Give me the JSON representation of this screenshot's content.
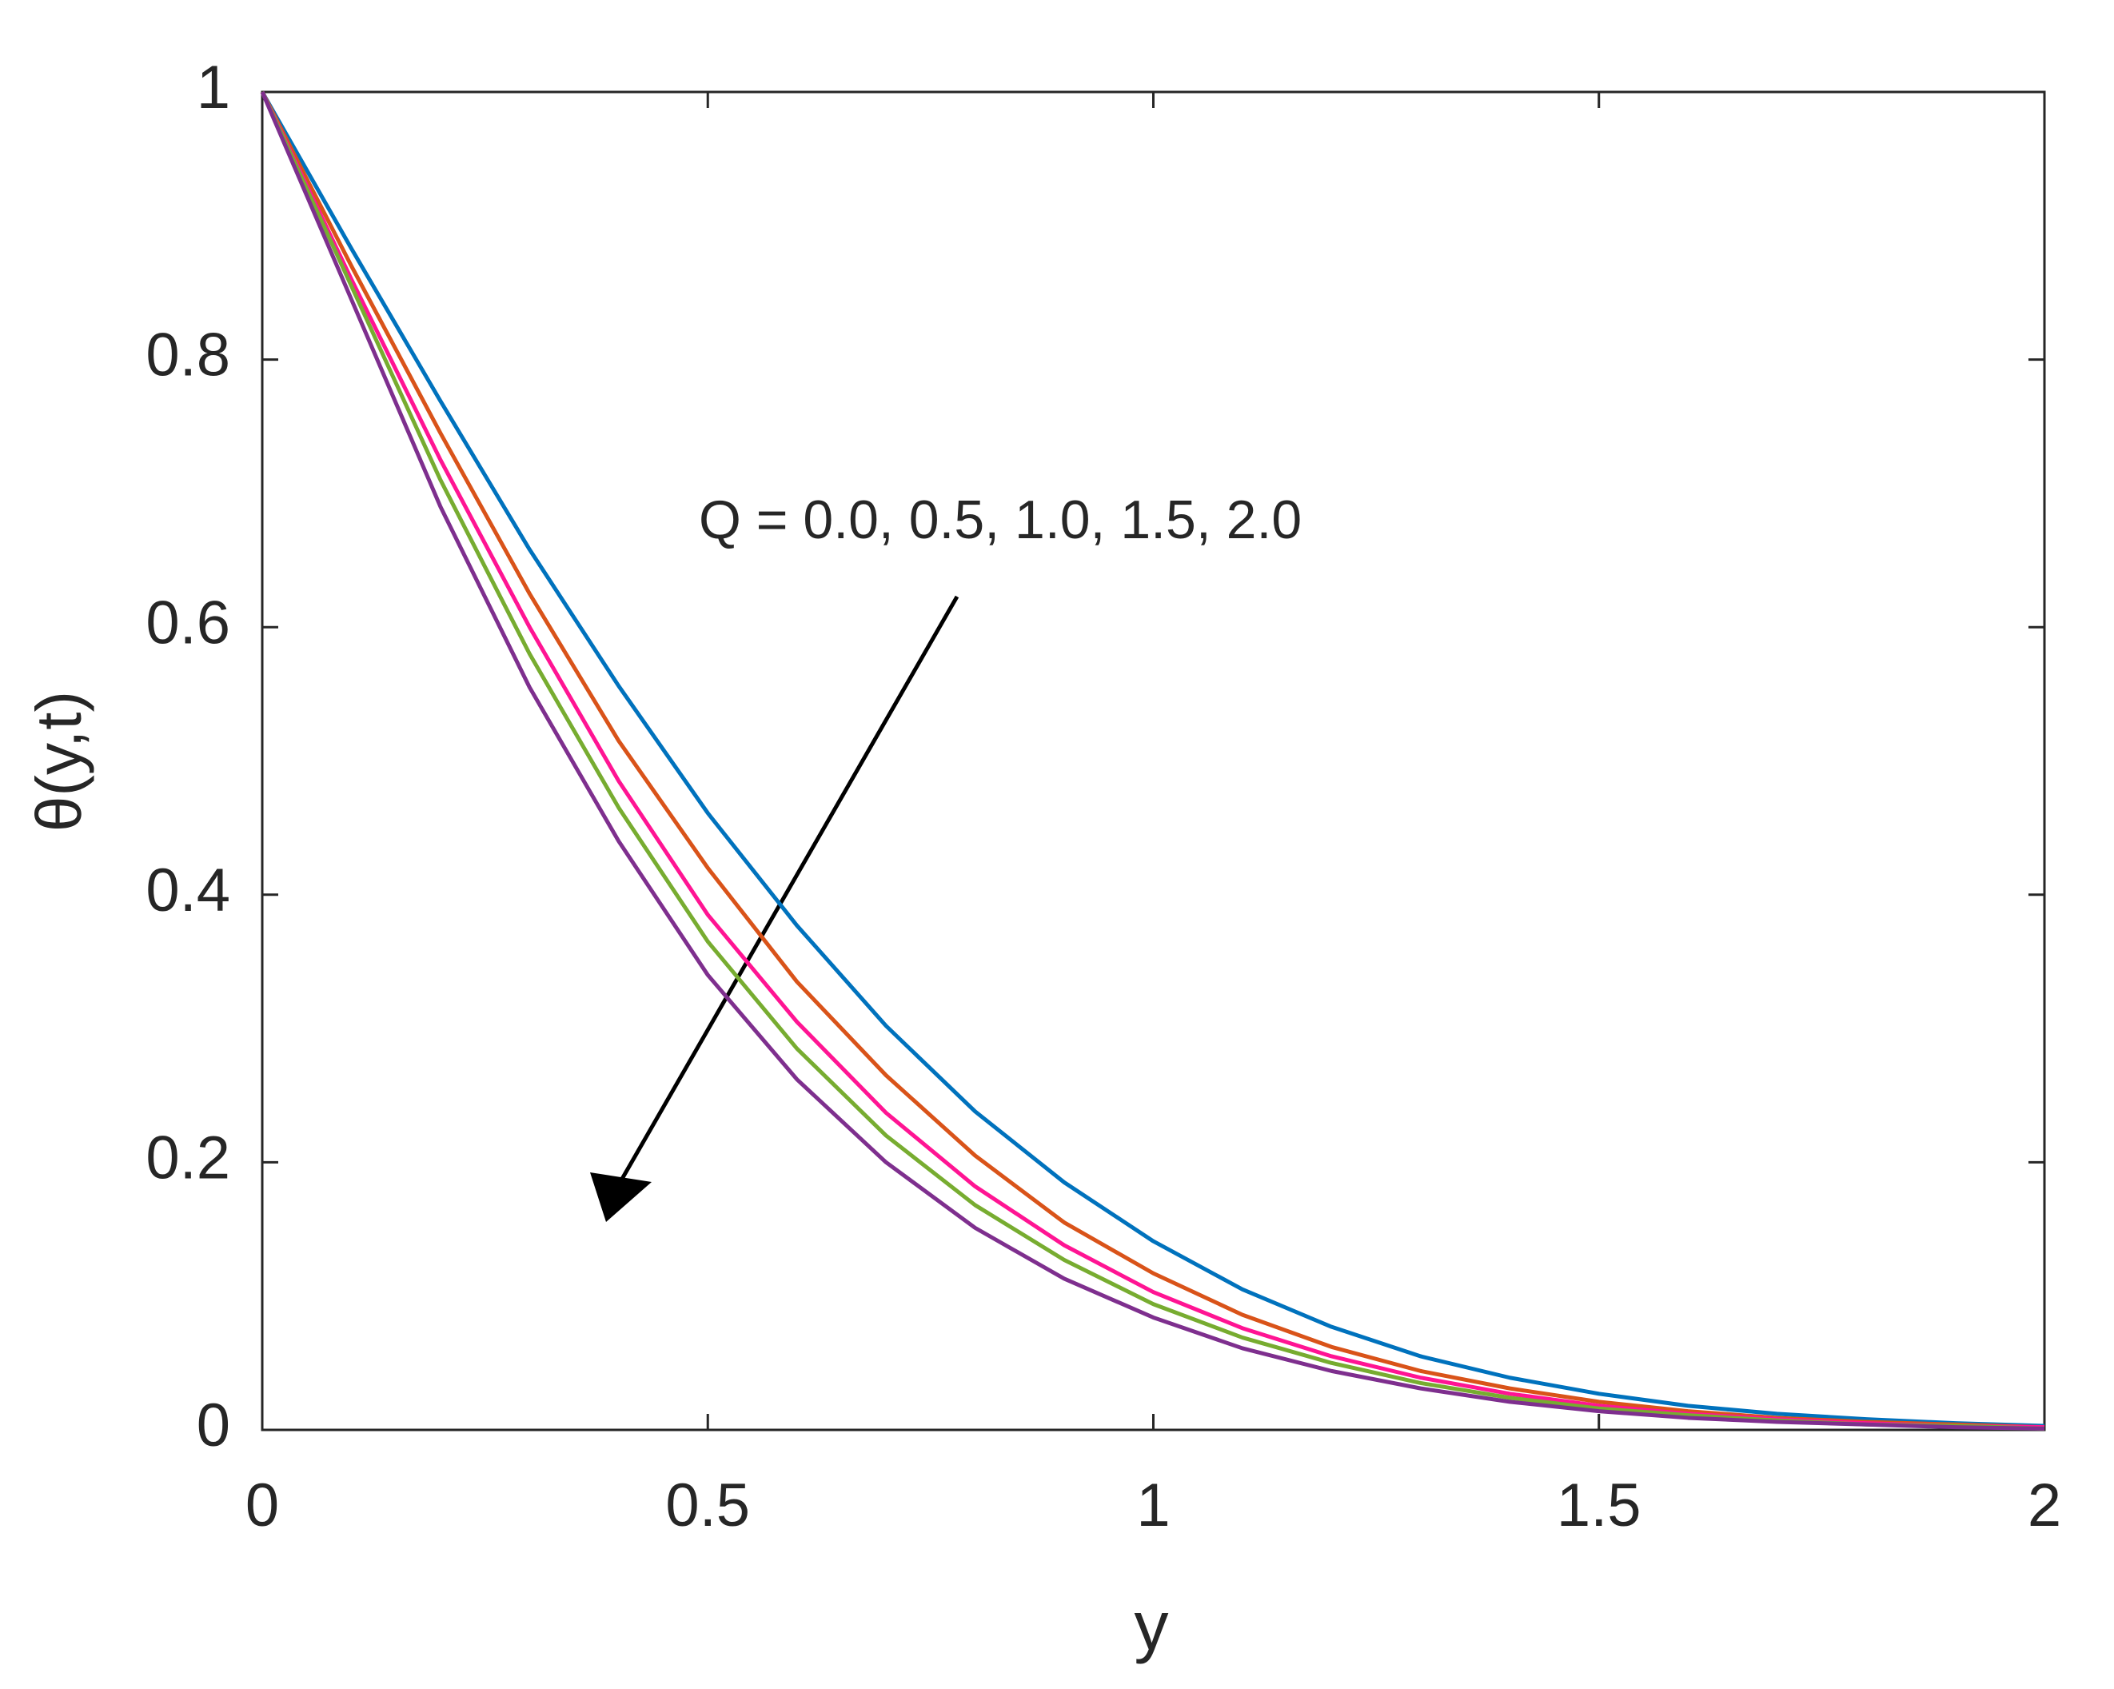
{
  "chart_data": {
    "type": "line",
    "xlabel": "y",
    "ylabel": "θ(y,t)",
    "annotation": "Q = 0.0, 0.5, 1.0, 1.5, 2.0",
    "x": [
      0,
      0.1,
      0.2,
      0.3,
      0.4,
      0.5,
      0.6,
      0.7,
      0.8,
      0.9,
      1.0,
      1.1,
      1.2,
      1.3,
      1.4,
      1.5,
      1.6,
      1.7,
      1.8,
      1.9,
      2.0
    ],
    "series": [
      {
        "color": "#0072bd",
        "values": [
          1,
          0.883,
          0.769,
          0.658,
          0.556,
          0.461,
          0.377,
          0.302,
          0.238,
          0.185,
          0.141,
          0.105,
          0.077,
          0.055,
          0.039,
          0.027,
          0.018,
          0.012,
          0.008,
          0.005,
          0.003
        ]
      },
      {
        "color": "#d95319",
        "values": [
          1,
          0.87,
          0.745,
          0.625,
          0.515,
          0.42,
          0.335,
          0.265,
          0.205,
          0.155,
          0.117,
          0.086,
          0.062,
          0.044,
          0.031,
          0.021,
          0.014,
          0.009,
          0.006,
          0.004,
          0.002
        ]
      },
      {
        "color": "#ff1493",
        "values": [
          1,
          0.86,
          0.725,
          0.6,
          0.485,
          0.385,
          0.305,
          0.237,
          0.182,
          0.138,
          0.103,
          0.076,
          0.055,
          0.039,
          0.027,
          0.018,
          0.012,
          0.008,
          0.005,
          0.003,
          0.002
        ]
      },
      {
        "color": "#77ac30",
        "values": [
          1,
          0.855,
          0.71,
          0.58,
          0.465,
          0.365,
          0.285,
          0.22,
          0.168,
          0.127,
          0.094,
          0.069,
          0.05,
          0.035,
          0.024,
          0.016,
          0.011,
          0.007,
          0.004,
          0.003,
          0.001
        ]
      },
      {
        "color": "#7e2f8e",
        "values": [
          1,
          0.845,
          0.69,
          0.555,
          0.44,
          0.34,
          0.262,
          0.2,
          0.151,
          0.113,
          0.084,
          0.061,
          0.044,
          0.031,
          0.021,
          0.014,
          0.009,
          0.006,
          0.004,
          0.002,
          0.001
        ]
      }
    ],
    "xlim": [
      0,
      2
    ],
    "xticks": [
      0,
      0.5,
      1,
      1.5,
      2
    ],
    "ylim": [
      0,
      1
    ],
    "yticks": [
      0,
      0.2,
      0.4,
      0.6,
      0.8,
      1
    ]
  }
}
